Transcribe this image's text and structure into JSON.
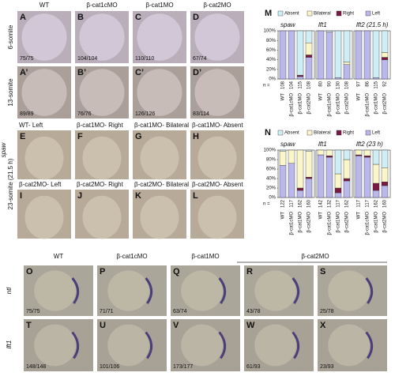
{
  "top_headers": [
    "WT",
    "β-cat1cMO",
    "β-cat1MO",
    "β-cat2MO"
  ],
  "bottom_headers": [
    "WT",
    "β-cat1cMO",
    "β-cat1MO",
    "β-cat2MO"
  ],
  "side_labels": [
    "6-somite",
    "13-somite",
    "spaw",
    "23-somite (21.5 h)",
    "ntl",
    "lft1"
  ],
  "rows": [
    {
      "panels": [
        {
          "letter": "A",
          "count": "75/75"
        },
        {
          "letter": "B",
          "count": "104/104"
        },
        {
          "letter": "C",
          "count": "110/110"
        },
        {
          "letter": "D",
          "count": "67/74"
        }
      ]
    },
    {
      "panels": [
        {
          "letter": "A’",
          "count": "89/89"
        },
        {
          "letter": "B’",
          "count": "76/76"
        },
        {
          "letter": "C’",
          "count": "126/126"
        },
        {
          "letter": "D’",
          "count": "83/114"
        }
      ]
    },
    {
      "panels": [
        {
          "letter": "E",
          "caption": "WT- Left"
        },
        {
          "letter": "F",
          "caption": "β-cat1MO- Right"
        },
        {
          "letter": "G",
          "caption": "β-cat1MO- Bilateral"
        },
        {
          "letter": "H",
          "caption": "β-cat1MO- Absent"
        }
      ]
    },
    {
      "panels": [
        {
          "letter": "I",
          "caption": "β-cat2MO- Left"
        },
        {
          "letter": "J",
          "caption": "β-cat2MO- Right"
        },
        {
          "letter": "K",
          "caption": "β-cat2MO- Bilateral"
        },
        {
          "letter": "L",
          "caption": "β-cat2MO- Absent"
        }
      ]
    },
    {
      "panels": [
        {
          "letter": "O",
          "count": "75/75"
        },
        {
          "letter": "P",
          "count": "71/71"
        },
        {
          "letter": "Q",
          "count": "63/74"
        },
        {
          "letter": "R",
          "count": "43/78"
        },
        {
          "letter": "S",
          "count": "25/78"
        }
      ]
    },
    {
      "panels": [
        {
          "letter": "T",
          "count": "148/148"
        },
        {
          "letter": "U",
          "count": "101/106"
        },
        {
          "letter": "V",
          "count": "173/177"
        },
        {
          "letter": "W",
          "count": "61/93"
        },
        {
          "letter": "X",
          "count": "23/93"
        }
      ]
    }
  ],
  "chart_data": [
    {
      "type": "bar",
      "stacked": true,
      "panel": "M",
      "n_label": "n =",
      "groups": [
        "spaw",
        "lft1",
        "lft2 (21.5 h)"
      ],
      "categories": [
        "WT",
        "β-cat1cMO",
        "β-cat1MO",
        "β-cat2MO",
        "WT",
        "β-cat1cMO",
        "β-cat1MO",
        "β-cat2MO",
        "WT",
        "β-cat1cMO",
        "β-cat1MO",
        "β-cat2MO"
      ],
      "n": [
        108,
        104,
        115,
        108,
        80,
        90,
        130,
        108,
        97,
        86,
        115,
        92
      ],
      "ylim": [
        0,
        100
      ],
      "yticks": [
        {
          "value": 0,
          "label": "0%"
        },
        {
          "value": 20,
          "label": "20%"
        },
        {
          "value": 40,
          "label": "40%"
        },
        {
          "value": 60,
          "label": "60%"
        },
        {
          "value": 80,
          "label": "80%"
        },
        {
          "value": 100,
          "label": "100%"
        }
      ],
      "series": [
        {
          "name": "Absent",
          "color": "#cdeef5",
          "values": [
            0,
            0,
            92,
            25,
            0,
            3,
            97,
            65,
            0,
            0,
            97,
            45
          ]
        },
        {
          "name": "Bilateral",
          "color": "#fbf6c9",
          "values": [
            0,
            0,
            0,
            25,
            0,
            0,
            0,
            5,
            0,
            0,
            0,
            10
          ]
        },
        {
          "name": "Right",
          "color": "#7a1a42",
          "values": [
            0,
            0,
            3,
            5,
            0,
            0,
            0,
            0,
            0,
            0,
            0,
            5
          ]
        },
        {
          "name": "Left",
          "color": "#bab7ec",
          "values": [
            100,
            100,
            5,
            45,
            100,
            97,
            3,
            30,
            100,
            100,
            3,
            40
          ]
        }
      ]
    },
    {
      "type": "bar",
      "stacked": true,
      "panel": "N",
      "n_label": "n =",
      "groups": [
        "spaw",
        "lft1",
        "lft2 (23 h)"
      ],
      "categories": [
        "WT",
        "β-cat1cMO",
        "β-cat1MO",
        "β-cat2MO",
        "WT",
        "β-cat1cMO",
        "β-cat1MO",
        "β-cat2MO",
        "WT",
        "β-cat1cMO",
        "β-cat1MO",
        "β-cat2MO"
      ],
      "n": [
        122,
        117,
        162,
        160,
        142,
        132,
        117,
        162,
        117,
        117,
        162,
        160
      ],
      "ylim": [
        0,
        100
      ],
      "yticks": [
        {
          "value": 0,
          "label": "0%"
        },
        {
          "value": 20,
          "label": "20%"
        },
        {
          "value": 40,
          "label": "40%"
        },
        {
          "value": 60,
          "label": "60%"
        },
        {
          "value": 80,
          "label": "80%"
        },
        {
          "value": 100,
          "label": "100%"
        }
      ],
      "series": [
        {
          "name": "Absent",
          "color": "#cdeef5",
          "values": [
            2,
            0,
            0,
            2,
            0,
            0,
            50,
            20,
            0,
            0,
            30,
            37
          ]
        },
        {
          "name": "Bilateral",
          "color": "#fbf6c9",
          "values": [
            30,
            28,
            80,
            55,
            10,
            12,
            30,
            40,
            10,
            12,
            40,
            30
          ]
        },
        {
          "name": "Right",
          "color": "#7a1a42",
          "values": [
            0,
            0,
            5,
            3,
            0,
            3,
            10,
            5,
            2,
            3,
            15,
            8
          ]
        },
        {
          "name": "Left",
          "color": "#bab7ec",
          "values": [
            68,
            72,
            15,
            40,
            90,
            85,
            10,
            35,
            88,
            85,
            15,
            25
          ]
        }
      ]
    }
  ]
}
